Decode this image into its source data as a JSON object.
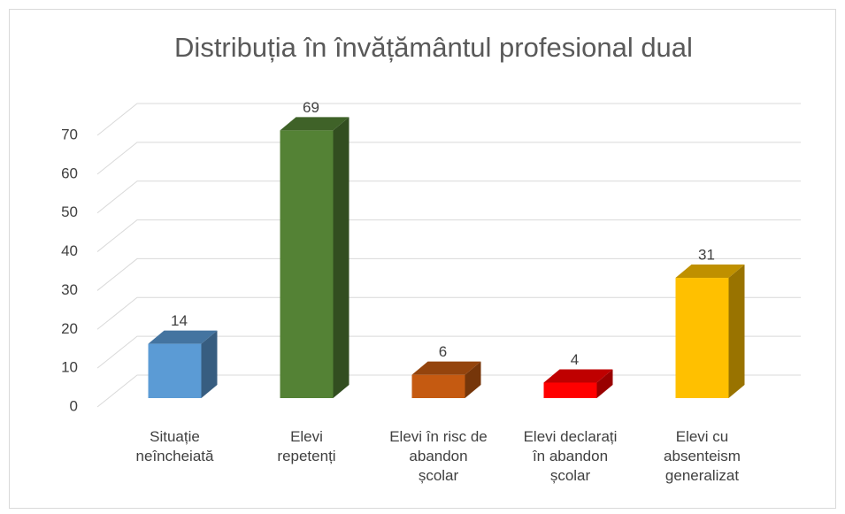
{
  "chart_data": {
    "type": "bar3d",
    "title": "Distribuția  în învățământul profesional dual",
    "categories": [
      "Situație\nneîncheiată",
      "Elevi\nrepetenți",
      "Elevi în risc de\nabandon\nșcolar",
      "Elevi declarați\nîn abandon\nșcolar",
      "Elevi cu\nabsenteism\ngeneralizat"
    ],
    "values": [
      14,
      69,
      6,
      4,
      31
    ],
    "colors": [
      "#5b9bd5",
      "#548235",
      "#c55a11",
      "#ff0000",
      "#ffc000"
    ],
    "ylim": [
      0,
      70
    ],
    "yticks": [
      0,
      10,
      20,
      30,
      40,
      50,
      60,
      70
    ],
    "grid": true
  }
}
